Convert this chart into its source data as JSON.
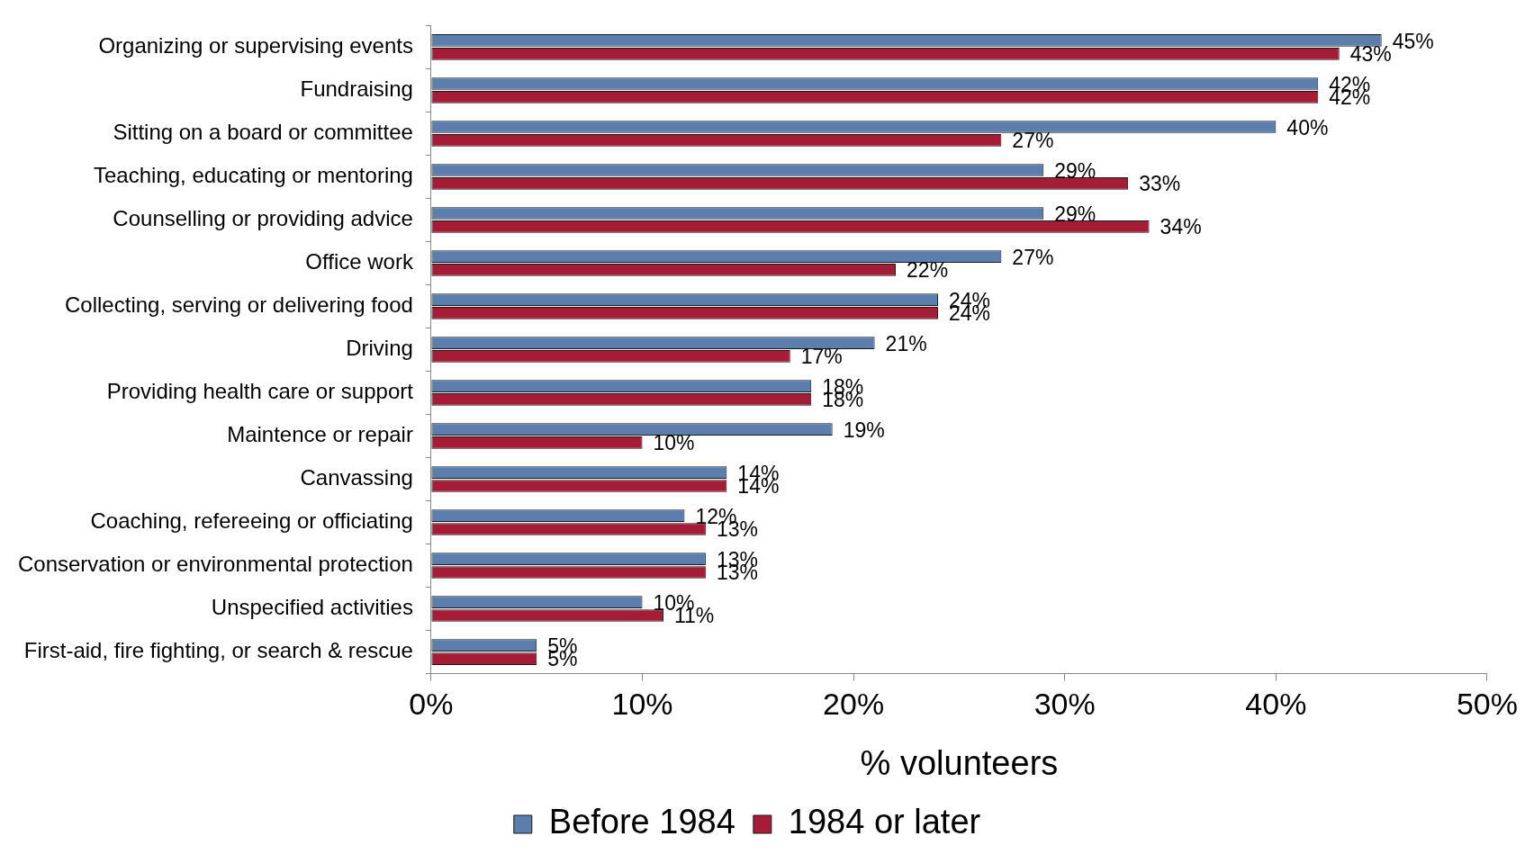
{
  "chart_data": {
    "type": "bar",
    "orientation": "horizontal",
    "xlabel": "% volunteers",
    "categories": [
      "Organizing or supervising events",
      "Fundraising",
      "Sitting on a board or committee",
      "Teaching, educating or mentoring",
      "Counselling or providing advice",
      "Office work",
      "Collecting, serving or delivering food",
      "Driving",
      "Providing health care or support",
      "Maintence or repair",
      "Canvassing",
      "Coaching, refereeing or officiating",
      "Conservation or environmental protection",
      "Unspecified activities",
      "First-aid, fire fighting, or search & rescue"
    ],
    "series": [
      {
        "name": "Before 1984",
        "color": "#5b7ead",
        "values": [
          45,
          42,
          40,
          29,
          29,
          27,
          24,
          21,
          18,
          19,
          14,
          12,
          13,
          10,
          5
        ],
        "value_labels": [
          "45%",
          "42%",
          "40%",
          "29%",
          "29%",
          "27%",
          "24%",
          "21%",
          "18%",
          "19%",
          "14%",
          "12%",
          "13%",
          "10%",
          "5%"
        ]
      },
      {
        "name": "1984 or later",
        "color": "#a51c36",
        "values": [
          43,
          42,
          27,
          33,
          34,
          22,
          24,
          17,
          18,
          10,
          14,
          13,
          13,
          11,
          5
        ],
        "value_labels": [
          "43%",
          "42%",
          "27%",
          "33%",
          "34%",
          "22%",
          "24%",
          "17%",
          "18%",
          "10%",
          "14%",
          "13%",
          "13%",
          "11%",
          "5%"
        ]
      }
    ],
    "xlim": [
      0,
      50
    ],
    "xticks": [
      {
        "value": 0,
        "label": "0%"
      },
      {
        "value": 10,
        "label": "10%"
      },
      {
        "value": 20,
        "label": "20%"
      },
      {
        "value": 30,
        "label": "30%"
      },
      {
        "value": 40,
        "label": "40%"
      },
      {
        "value": 50,
        "label": "50%"
      }
    ],
    "grid": false,
    "legend": "bottom"
  }
}
